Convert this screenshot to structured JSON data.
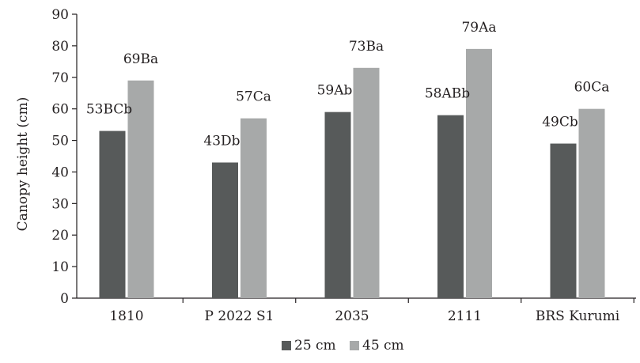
{
  "chart_data": {
    "type": "bar",
    "ylabel": "Canopy height (cm)",
    "xlabel": "",
    "ylim": [
      0,
      90
    ],
    "yticks": [
      0,
      10,
      20,
      30,
      40,
      50,
      60,
      70,
      80,
      90
    ],
    "categories": [
      "1810",
      "P 2022 S1",
      "2035",
      "2111",
      "BRS Kurumi"
    ],
    "series": [
      {
        "name": "25 cm",
        "color": "#575a5a",
        "values": [
          53,
          43,
          59,
          58,
          49
        ],
        "labels": [
          "53BCb",
          "43Db",
          "59Ab",
          "58ABb",
          "49Cb"
        ]
      },
      {
        "name": "45 cm",
        "color": "#a7a9a9",
        "values": [
          69,
          57,
          73,
          79,
          60
        ],
        "labels": [
          "69Ba",
          "57Ca",
          "73Ba",
          "79Aa",
          "60Ca"
        ]
      }
    ],
    "legend_position": "bottom",
    "grid": false
  }
}
